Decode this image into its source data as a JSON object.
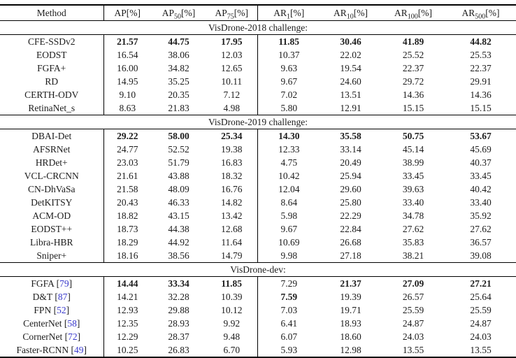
{
  "table": {
    "header": {
      "method_label": "Method",
      "columns": [
        {
          "base": "AP",
          "sub": "",
          "unit": "[%]"
        },
        {
          "base": "AP",
          "sub": "50",
          "unit": "[%]"
        },
        {
          "base": "AP",
          "sub": "75",
          "unit": "[%]"
        },
        {
          "base": "AR",
          "sub": "1",
          "unit": "[%]"
        },
        {
          "base": "AR",
          "sub": "10",
          "unit": "[%]"
        },
        {
          "base": "AR",
          "sub": "100",
          "unit": "[%]"
        },
        {
          "base": "AR",
          "sub": "500",
          "unit": "[%]"
        }
      ]
    },
    "citation_brackets": {
      "open": "[",
      "close": "]"
    },
    "sections": [
      {
        "title": "VisDrone-2018 challenge:",
        "rows": [
          {
            "method": "CFE-SSDv2",
            "cite": "",
            "values": [
              "21.57",
              "44.75",
              "17.95",
              "11.85",
              "30.46",
              "41.89",
              "44.82"
            ],
            "bold": [
              true,
              true,
              true,
              true,
              true,
              true,
              true
            ]
          },
          {
            "method": "EODST",
            "cite": "",
            "values": [
              "16.54",
              "38.06",
              "12.03",
              "10.37",
              "22.02",
              "25.52",
              "25.53"
            ]
          },
          {
            "method": "FGFA+",
            "cite": "",
            "values": [
              "16.00",
              "34.82",
              "12.65",
              "9.63",
              "19.54",
              "22.37",
              "22.37"
            ]
          },
          {
            "method": "RD",
            "cite": "",
            "values": [
              "14.95",
              "35.25",
              "10.11",
              "9.67",
              "24.60",
              "29.72",
              "29.91"
            ]
          },
          {
            "method": "CERTH-ODV",
            "cite": "",
            "values": [
              "9.10",
              "20.35",
              "7.12",
              "7.02",
              "13.51",
              "14.36",
              "14.36"
            ]
          },
          {
            "method": "RetinaNet_s",
            "cite": "",
            "values": [
              "8.63",
              "21.83",
              "4.98",
              "5.80",
              "12.91",
              "15.15",
              "15.15"
            ]
          }
        ]
      },
      {
        "title": "VisDrone-2019 challenge:",
        "rows": [
          {
            "method": "DBAI-Det",
            "cite": "",
            "values": [
              "29.22",
              "58.00",
              "25.34",
              "14.30",
              "35.58",
              "50.75",
              "53.67"
            ],
            "bold": [
              true,
              true,
              true,
              true,
              true,
              true,
              true
            ]
          },
          {
            "method": "AFSRNet",
            "cite": "",
            "values": [
              "24.77",
              "52.52",
              "19.38",
              "12.33",
              "33.14",
              "45.14",
              "45.69"
            ]
          },
          {
            "method": "HRDet+",
            "cite": "",
            "values": [
              "23.03",
              "51.79",
              "16.83",
              "4.75",
              "20.49",
              "38.99",
              "40.37"
            ]
          },
          {
            "method": "VCL-CRCNN",
            "cite": "",
            "values": [
              "21.61",
              "43.88",
              "18.32",
              "10.42",
              "25.94",
              "33.45",
              "33.45"
            ]
          },
          {
            "method": "CN-DhVaSa",
            "cite": "",
            "values": [
              "21.58",
              "48.09",
              "16.76",
              "12.04",
              "29.60",
              "39.63",
              "40.42"
            ]
          },
          {
            "method": "DetKITSY",
            "cite": "",
            "values": [
              "20.43",
              "46.33",
              "14.82",
              "8.64",
              "25.80",
              "33.40",
              "33.40"
            ]
          },
          {
            "method": "ACM-OD",
            "cite": "",
            "values": [
              "18.82",
              "43.15",
              "13.42",
              "5.98",
              "22.29",
              "34.78",
              "35.92"
            ]
          },
          {
            "method": "EODST++",
            "cite": "",
            "values": [
              "18.73",
              "44.38",
              "12.68",
              "9.67",
              "22.84",
              "27.62",
              "27.62"
            ]
          },
          {
            "method": "Libra-HBR",
            "cite": "",
            "values": [
              "18.29",
              "44.92",
              "11.64",
              "10.69",
              "26.68",
              "35.83",
              "36.57"
            ]
          },
          {
            "method": "Sniper+",
            "cite": "",
            "values": [
              "18.16",
              "38.56",
              "14.79",
              "9.98",
              "27.18",
              "38.21",
              "39.08"
            ]
          }
        ]
      },
      {
        "title": "VisDrone-dev:",
        "rows": [
          {
            "method": "FGFA",
            "cite": "79",
            "values": [
              "14.44",
              "33.34",
              "11.85",
              "7.29",
              "21.37",
              "27.09",
              "27.21"
            ],
            "bold": [
              true,
              true,
              true,
              false,
              true,
              true,
              true
            ]
          },
          {
            "method": "D&T",
            "cite": "87",
            "values": [
              "14.21",
              "32.28",
              "10.39",
              "7.59",
              "19.39",
              "26.57",
              "25.64"
            ],
            "bold": [
              false,
              false,
              false,
              true,
              false,
              false,
              false
            ]
          },
          {
            "method": "FPN",
            "cite": "52",
            "values": [
              "12.93",
              "29.88",
              "10.12",
              "7.03",
              "19.71",
              "25.59",
              "25.59"
            ]
          },
          {
            "method": "CenterNet",
            "cite": "58",
            "values": [
              "12.35",
              "28.93",
              "9.92",
              "6.41",
              "18.93",
              "24.87",
              "24.87"
            ]
          },
          {
            "method": "CornerNet",
            "cite": "72",
            "values": [
              "12.29",
              "28.37",
              "9.48",
              "6.07",
              "18.60",
              "24.03",
              "24.03"
            ]
          },
          {
            "method": "Faster-RCNN",
            "cite": "49",
            "values": [
              "10.25",
              "26.83",
              "6.70",
              "5.93",
              "12.98",
              "13.55",
              "13.55"
            ]
          }
        ]
      }
    ]
  },
  "colors": {
    "citation_link": "#3a3acc",
    "rule": "#000000",
    "text": "#1c1c1c"
  }
}
